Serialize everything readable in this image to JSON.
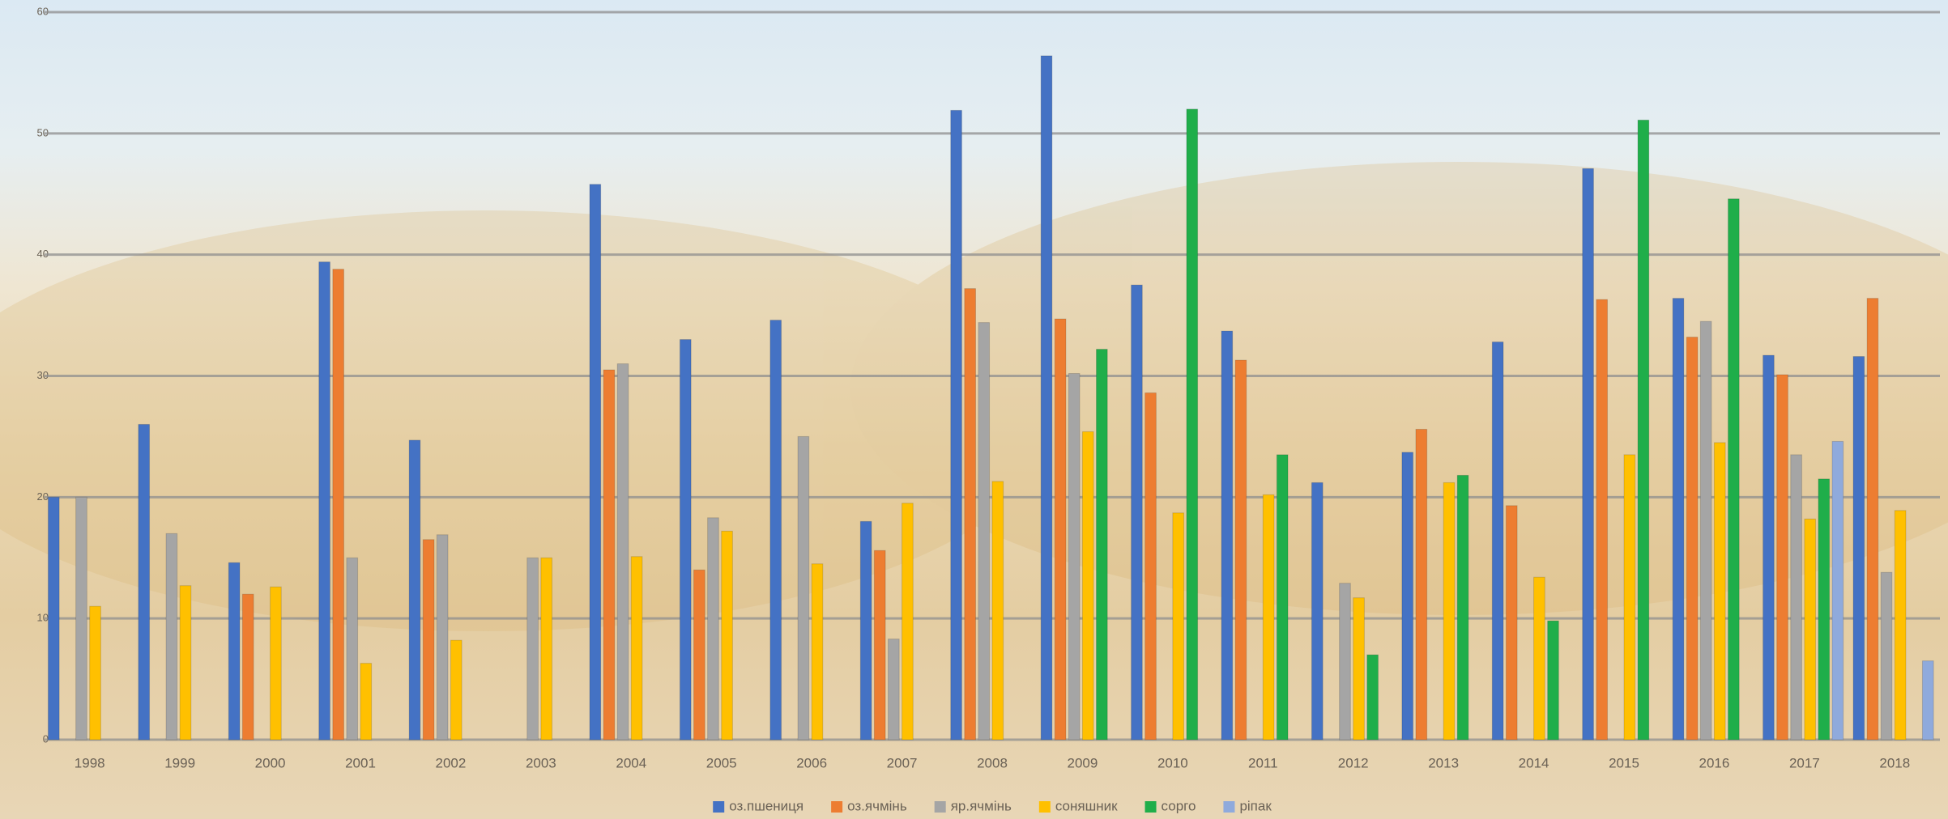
{
  "chart_data": {
    "type": "bar",
    "categories": [
      "1998",
      "1999",
      "2000",
      "2001",
      "2002",
      "2003",
      "2004",
      "2005",
      "2006",
      "2007",
      "2008",
      "2009",
      "2010",
      "2011",
      "2012",
      "2013",
      "2014",
      "2015",
      "2016",
      "2017",
      "2018"
    ],
    "series": [
      {
        "name": "оз.пшениця",
        "color": "#4472c4",
        "values": [
          20,
          26,
          14.6,
          39.4,
          24.7,
          null,
          45.8,
          33,
          34.6,
          18,
          51.9,
          56.4,
          37.5,
          33.7,
          21.2,
          23.7,
          32.8,
          47.1,
          36.4,
          31.7,
          31.6
        ]
      },
      {
        "name": "оз.ячмінь",
        "color": "#ed7d31",
        "values": [
          null,
          null,
          12,
          38.8,
          16.5,
          null,
          30.5,
          14,
          null,
          15.6,
          37.2,
          34.7,
          28.6,
          31.3,
          null,
          25.6,
          19.3,
          36.3,
          33.2,
          30.1,
          36.4
        ]
      },
      {
        "name": "яр.ячмінь",
        "color": "#a5a5a5",
        "values": [
          20,
          17,
          null,
          15,
          16.9,
          15,
          31,
          18.3,
          25,
          8.3,
          34.4,
          30.2,
          null,
          null,
          12.9,
          null,
          null,
          null,
          34.5,
          23.5,
          13.8
        ]
      },
      {
        "name": "соняшник",
        "color": "#ffc000",
        "values": [
          11,
          12.7,
          12.6,
          6.3,
          8.2,
          15,
          15.1,
          17.2,
          14.5,
          19.5,
          21.3,
          25.4,
          18.7,
          20.2,
          11.7,
          21.2,
          13.4,
          23.5,
          24.5,
          18.2,
          18.9
        ]
      },
      {
        "name": "сорго",
        "color": "#1fae4a",
        "values": [
          null,
          null,
          null,
          null,
          null,
          null,
          null,
          null,
          null,
          null,
          null,
          32.2,
          52,
          23.5,
          7,
          21.8,
          9.8,
          51.1,
          44.6,
          21.5,
          null
        ]
      },
      {
        "name": "ріпак",
        "color": "#8faadc",
        "values": [
          null,
          null,
          null,
          null,
          null,
          null,
          null,
          null,
          null,
          null,
          null,
          null,
          null,
          null,
          null,
          null,
          null,
          null,
          null,
          24.6,
          6.5
        ]
      }
    ],
    "ylim": [
      0,
      60
    ],
    "yticks": [
      0,
      10,
      20,
      30,
      40,
      50,
      60
    ],
    "grid": true
  }
}
